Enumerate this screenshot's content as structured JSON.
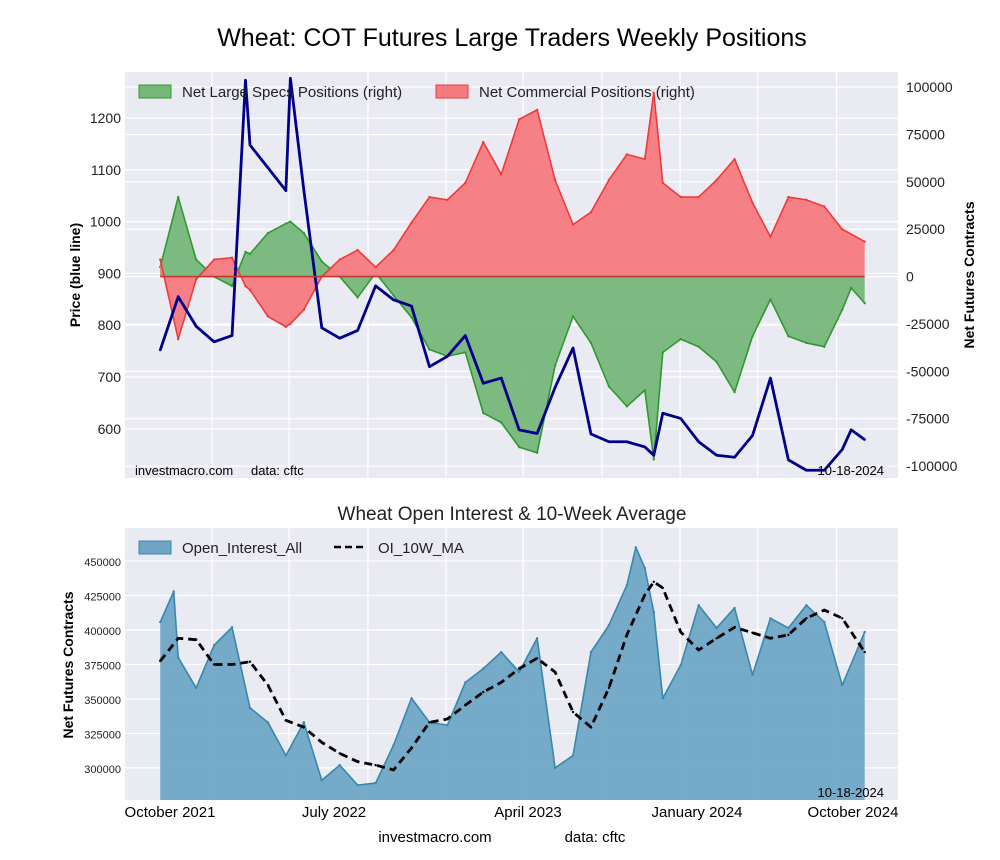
{
  "title": "Wheat: COT Futures Large Traders Weekly Positions",
  "footer": {
    "site": "investmacro.com",
    "data": "data: cftc"
  },
  "chart_data": [
    {
      "type": "area+line",
      "title": "",
      "xlim": [
        "2021-08-18",
        "2024-12-06"
      ],
      "grid": true,
      "legend_placement": "top-left",
      "y_left": {
        "label": "Price (blue line)",
        "lim": [
          505,
          1289
        ],
        "ticks": [
          "600",
          "700",
          "800",
          "900",
          "1000",
          "1100",
          "1200"
        ]
      },
      "y_right": {
        "label": "Net Futures Contracts",
        "lim": [
          -106300,
          108000
        ],
        "ticks": [
          "-100000",
          "-75000",
          "-50000",
          "-25000",
          "0",
          "25000",
          "50000",
          "75000",
          "100000"
        ]
      },
      "annotations": {
        "site": "investmacro.com",
        "source": "data: cftc",
        "date": "10-18-2024"
      },
      "series": [
        {
          "name": "Net Large Specs Positions (right)",
          "type": "area",
          "axis": "right",
          "color": "#2e9a2e",
          "fill": "#77b77a",
          "values": [
            [
              "2021-10-12",
              5000
            ],
            [
              "2021-11-09",
              42000
            ],
            [
              "2021-12-07",
              9000
            ],
            [
              "2022-01-04",
              0
            ],
            [
              "2022-02-01",
              -5000
            ],
            [
              "2022-02-22",
              13000
            ],
            [
              "2022-03-01",
              12000
            ],
            [
              "2022-03-29",
              23000
            ],
            [
              "2022-04-26",
              28000
            ],
            [
              "2022-05-03",
              29000
            ],
            [
              "2022-05-24",
              23000
            ],
            [
              "2022-06-21",
              8000
            ],
            [
              "2022-07-19",
              0
            ],
            [
              "2022-08-16",
              -11000
            ],
            [
              "2022-09-13",
              2000
            ],
            [
              "2022-10-11",
              -10000
            ],
            [
              "2022-11-08",
              -21500
            ],
            [
              "2022-12-06",
              -38500
            ],
            [
              "2023-01-03",
              -42000
            ],
            [
              "2023-01-31",
              -40000
            ],
            [
              "2023-02-28",
              -72000
            ],
            [
              "2023-03-28",
              -77000
            ],
            [
              "2023-04-25",
              -90000
            ],
            [
              "2023-05-23",
              -93000
            ],
            [
              "2023-06-20",
              -47000
            ],
            [
              "2023-07-18",
              -21000
            ],
            [
              "2023-08-15",
              -35000
            ],
            [
              "2023-09-12",
              -58000
            ],
            [
              "2023-10-10",
              -68500
            ],
            [
              "2023-11-07",
              -60000
            ],
            [
              "2023-11-21",
              -96500
            ],
            [
              "2023-12-05",
              -40000
            ],
            [
              "2024-01-02",
              -33000
            ],
            [
              "2024-01-30",
              -37000
            ],
            [
              "2024-02-27",
              -45000
            ],
            [
              "2024-03-26",
              -61000
            ],
            [
              "2024-04-23",
              -31500
            ],
            [
              "2024-05-21",
              -12000
            ],
            [
              "2024-06-18",
              -31500
            ],
            [
              "2024-07-16",
              -35000
            ],
            [
              "2024-08-13",
              -37000
            ],
            [
              "2024-09-10",
              -17500
            ],
            [
              "2024-09-24",
              -6000
            ],
            [
              "2024-10-15",
              -14000
            ]
          ]
        },
        {
          "name": "Net Commercial Positions (right)",
          "type": "area",
          "axis": "right",
          "color": "#f03a3a",
          "fill": "#f57a7f",
          "values": [
            [
              "2021-10-12",
              9000
            ],
            [
              "2021-11-09",
              -33000
            ],
            [
              "2021-12-07",
              -1500
            ],
            [
              "2022-01-04",
              9000
            ],
            [
              "2022-02-01",
              10000
            ],
            [
              "2022-02-22",
              -5000
            ],
            [
              "2022-03-01",
              -7000
            ],
            [
              "2022-03-29",
              -21000
            ],
            [
              "2022-04-26",
              -26500
            ],
            [
              "2022-05-03",
              -25000
            ],
            [
              "2022-05-24",
              -17500
            ],
            [
              "2022-06-21",
              0
            ],
            [
              "2022-07-19",
              9000
            ],
            [
              "2022-08-16",
              14000
            ],
            [
              "2022-09-13",
              5000
            ],
            [
              "2022-10-11",
              14000
            ],
            [
              "2022-11-08",
              28500
            ],
            [
              "2022-12-06",
              42000
            ],
            [
              "2023-01-03",
              40500
            ],
            [
              "2023-01-31",
              49500
            ],
            [
              "2023-02-28",
              71000
            ],
            [
              "2023-03-28",
              54000
            ],
            [
              "2023-04-25",
              83000
            ],
            [
              "2023-05-23",
              88000
            ],
            [
              "2023-06-20",
              51000
            ],
            [
              "2023-07-18",
              27500
            ],
            [
              "2023-08-15",
              34000
            ],
            [
              "2023-09-12",
              51000
            ],
            [
              "2023-10-10",
              64500
            ],
            [
              "2023-11-07",
              62000
            ],
            [
              "2023-11-21",
              97000
            ],
            [
              "2023-12-05",
              49500
            ],
            [
              "2024-01-02",
              42000
            ],
            [
              "2024-01-30",
              42000
            ],
            [
              "2024-02-27",
              51000
            ],
            [
              "2024-03-26",
              62000
            ],
            [
              "2024-04-23",
              39000
            ],
            [
              "2024-05-21",
              21000
            ],
            [
              "2024-06-18",
              42000
            ],
            [
              "2024-07-16",
              40500
            ],
            [
              "2024-08-13",
              37000
            ],
            [
              "2024-09-10",
              25000
            ],
            [
              "2024-10-15",
              18500
            ]
          ]
        },
        {
          "type": "line",
          "axis": "left",
          "color": "#00008b",
          "values": [
            [
              "2021-10-12",
              752
            ],
            [
              "2021-11-09",
              855
            ],
            [
              "2021-12-07",
              798
            ],
            [
              "2022-01-04",
              768
            ],
            [
              "2022-02-01",
              780
            ],
            [
              "2022-02-22",
              1273
            ],
            [
              "2022-03-01",
              1148
            ],
            [
              "2022-03-29",
              1104
            ],
            [
              "2022-04-26",
              1060
            ],
            [
              "2022-05-03",
              1277
            ],
            [
              "2022-05-24",
              1061
            ],
            [
              "2022-06-21",
              795
            ],
            [
              "2022-07-19",
              775
            ],
            [
              "2022-08-16",
              790
            ],
            [
              "2022-09-13",
              876
            ],
            [
              "2022-10-11",
              849
            ],
            [
              "2022-11-08",
              837
            ],
            [
              "2022-12-06",
              720
            ],
            [
              "2023-01-03",
              740
            ],
            [
              "2023-01-31",
              780
            ],
            [
              "2023-02-28",
              688
            ],
            [
              "2023-03-28",
              698
            ],
            [
              "2023-04-25",
              598
            ],
            [
              "2023-05-23",
              591
            ],
            [
              "2023-06-20",
              680
            ],
            [
              "2023-07-18",
              756
            ],
            [
              "2023-08-15",
              590
            ],
            [
              "2023-09-12",
              575
            ],
            [
              "2023-10-10",
              575
            ],
            [
              "2023-11-07",
              565
            ],
            [
              "2023-11-21",
              549
            ],
            [
              "2023-12-05",
              630
            ],
            [
              "2024-01-02",
              620
            ],
            [
              "2024-01-30",
              575
            ],
            [
              "2024-02-27",
              549
            ],
            [
              "2024-03-26",
              545
            ],
            [
              "2024-04-23",
              587
            ],
            [
              "2024-05-21",
              698
            ],
            [
              "2024-06-18",
              540
            ],
            [
              "2024-07-16",
              520
            ],
            [
              "2024-08-13",
              520
            ],
            [
              "2024-09-10",
              560
            ],
            [
              "2024-09-24",
              598
            ],
            [
              "2024-10-15",
              579
            ]
          ]
        }
      ]
    },
    {
      "type": "area+line",
      "title": "Wheat Open Interest & 10-Week Average",
      "xlim": [
        "2021-08-18",
        "2024-12-06"
      ],
      "grid": true,
      "legend_placement": "top-left",
      "y_left": {
        "label": "Net Futures Contracts",
        "lim": [
          276700,
          474000
        ],
        "ticks": [
          "300000",
          "325000",
          "350000",
          "375000",
          "400000",
          "425000",
          "450000"
        ]
      },
      "x_ticks": [
        "October 2021",
        "July 2022",
        "April 2023",
        "January 2024",
        "October 2024"
      ],
      "annotations": {
        "date": "10-18-2024"
      },
      "series": [
        {
          "name": "Open_Interest_All",
          "type": "area",
          "color": "#3a87ad",
          "fill": "#6fa6c6",
          "values": [
            [
              "2021-10-12",
              405800
            ],
            [
              "2021-11-02",
              428000
            ],
            [
              "2021-11-09",
              380000
            ],
            [
              "2021-12-07",
              358000
            ],
            [
              "2022-01-04",
              389000
            ],
            [
              "2022-02-01",
              402000
            ],
            [
              "2022-03-01",
              343500
            ],
            [
              "2022-03-29",
              333000
            ],
            [
              "2022-04-26",
              309000
            ],
            [
              "2022-05-24",
              333000
            ],
            [
              "2022-06-21",
              291000
            ],
            [
              "2022-07-19",
              302000
            ],
            [
              "2022-08-16",
              287500
            ],
            [
              "2022-09-13",
              289000
            ],
            [
              "2022-10-11",
              316500
            ],
            [
              "2022-11-08",
              350500
            ],
            [
              "2022-12-06",
              333000
            ],
            [
              "2023-01-03",
              331000
            ],
            [
              "2023-01-31",
              362000
            ],
            [
              "2023-02-28",
              372000
            ],
            [
              "2023-03-28",
              384000
            ],
            [
              "2023-04-25",
              369500
            ],
            [
              "2023-05-23",
              394000
            ],
            [
              "2023-06-20",
              300000
            ],
            [
              "2023-07-18",
              309000
            ],
            [
              "2023-08-15",
              384000
            ],
            [
              "2023-09-12",
              403500
            ],
            [
              "2023-10-10",
              432500
            ],
            [
              "2023-10-24",
              460000
            ],
            [
              "2023-11-07",
              445000
            ],
            [
              "2023-11-21",
              413000
            ],
            [
              "2023-12-05",
              350500
            ],
            [
              "2024-01-02",
              374500
            ],
            [
              "2024-01-30",
              418000
            ],
            [
              "2024-02-27",
              401500
            ],
            [
              "2024-03-26",
              416000
            ],
            [
              "2024-04-23",
              367500
            ],
            [
              "2024-05-21",
              408500
            ],
            [
              "2024-06-18",
              401500
            ],
            [
              "2024-07-16",
              418000
            ],
            [
              "2024-08-13",
              405800
            ],
            [
              "2024-09-10",
              360000
            ],
            [
              "2024-10-15",
              398500
            ]
          ]
        },
        {
          "name": "OI_10W_MA",
          "type": "line",
          "style": "dashed",
          "color": "#000000",
          "values": [
            [
              "2021-10-12",
              377500
            ],
            [
              "2021-11-09",
              394000
            ],
            [
              "2021-12-07",
              393000
            ],
            [
              "2022-01-04",
              375000
            ],
            [
              "2022-02-01",
              375000
            ],
            [
              "2022-03-01",
              377000
            ],
            [
              "2022-03-29",
              360000
            ],
            [
              "2022-04-26",
              334500
            ],
            [
              "2022-05-24",
              329500
            ],
            [
              "2022-06-21",
              318500
            ],
            [
              "2022-07-19",
              310500
            ],
            [
              "2022-08-16",
              304500
            ],
            [
              "2022-09-13",
              302000
            ],
            [
              "2022-10-11",
              298500
            ],
            [
              "2022-11-08",
              314500
            ],
            [
              "2022-12-06",
              333000
            ],
            [
              "2023-01-03",
              335500
            ],
            [
              "2023-01-31",
              345500
            ],
            [
              "2023-02-28",
              355000
            ],
            [
              "2023-03-28",
              362000
            ],
            [
              "2023-04-25",
              372000
            ],
            [
              "2023-05-23",
              379500
            ],
            [
              "2023-06-20",
              369500
            ],
            [
              "2023-07-18",
              340500
            ],
            [
              "2023-08-15",
              329500
            ],
            [
              "2023-09-12",
              358000
            ],
            [
              "2023-10-10",
              396500
            ],
            [
              "2023-11-07",
              425500
            ],
            [
              "2023-11-21",
              435000
            ],
            [
              "2023-12-05",
              430500
            ],
            [
              "2024-01-02",
              398500
            ],
            [
              "2024-01-30",
              385500
            ],
            [
              "2024-02-27",
              394000
            ],
            [
              "2024-03-26",
              402000
            ],
            [
              "2024-04-23",
              398000
            ],
            [
              "2024-05-21",
              394000
            ],
            [
              "2024-06-18",
              396500
            ],
            [
              "2024-07-16",
              408500
            ],
            [
              "2024-08-13",
              414500
            ],
            [
              "2024-09-10",
              408500
            ],
            [
              "2024-10-15",
              384000
            ]
          ]
        }
      ]
    }
  ]
}
